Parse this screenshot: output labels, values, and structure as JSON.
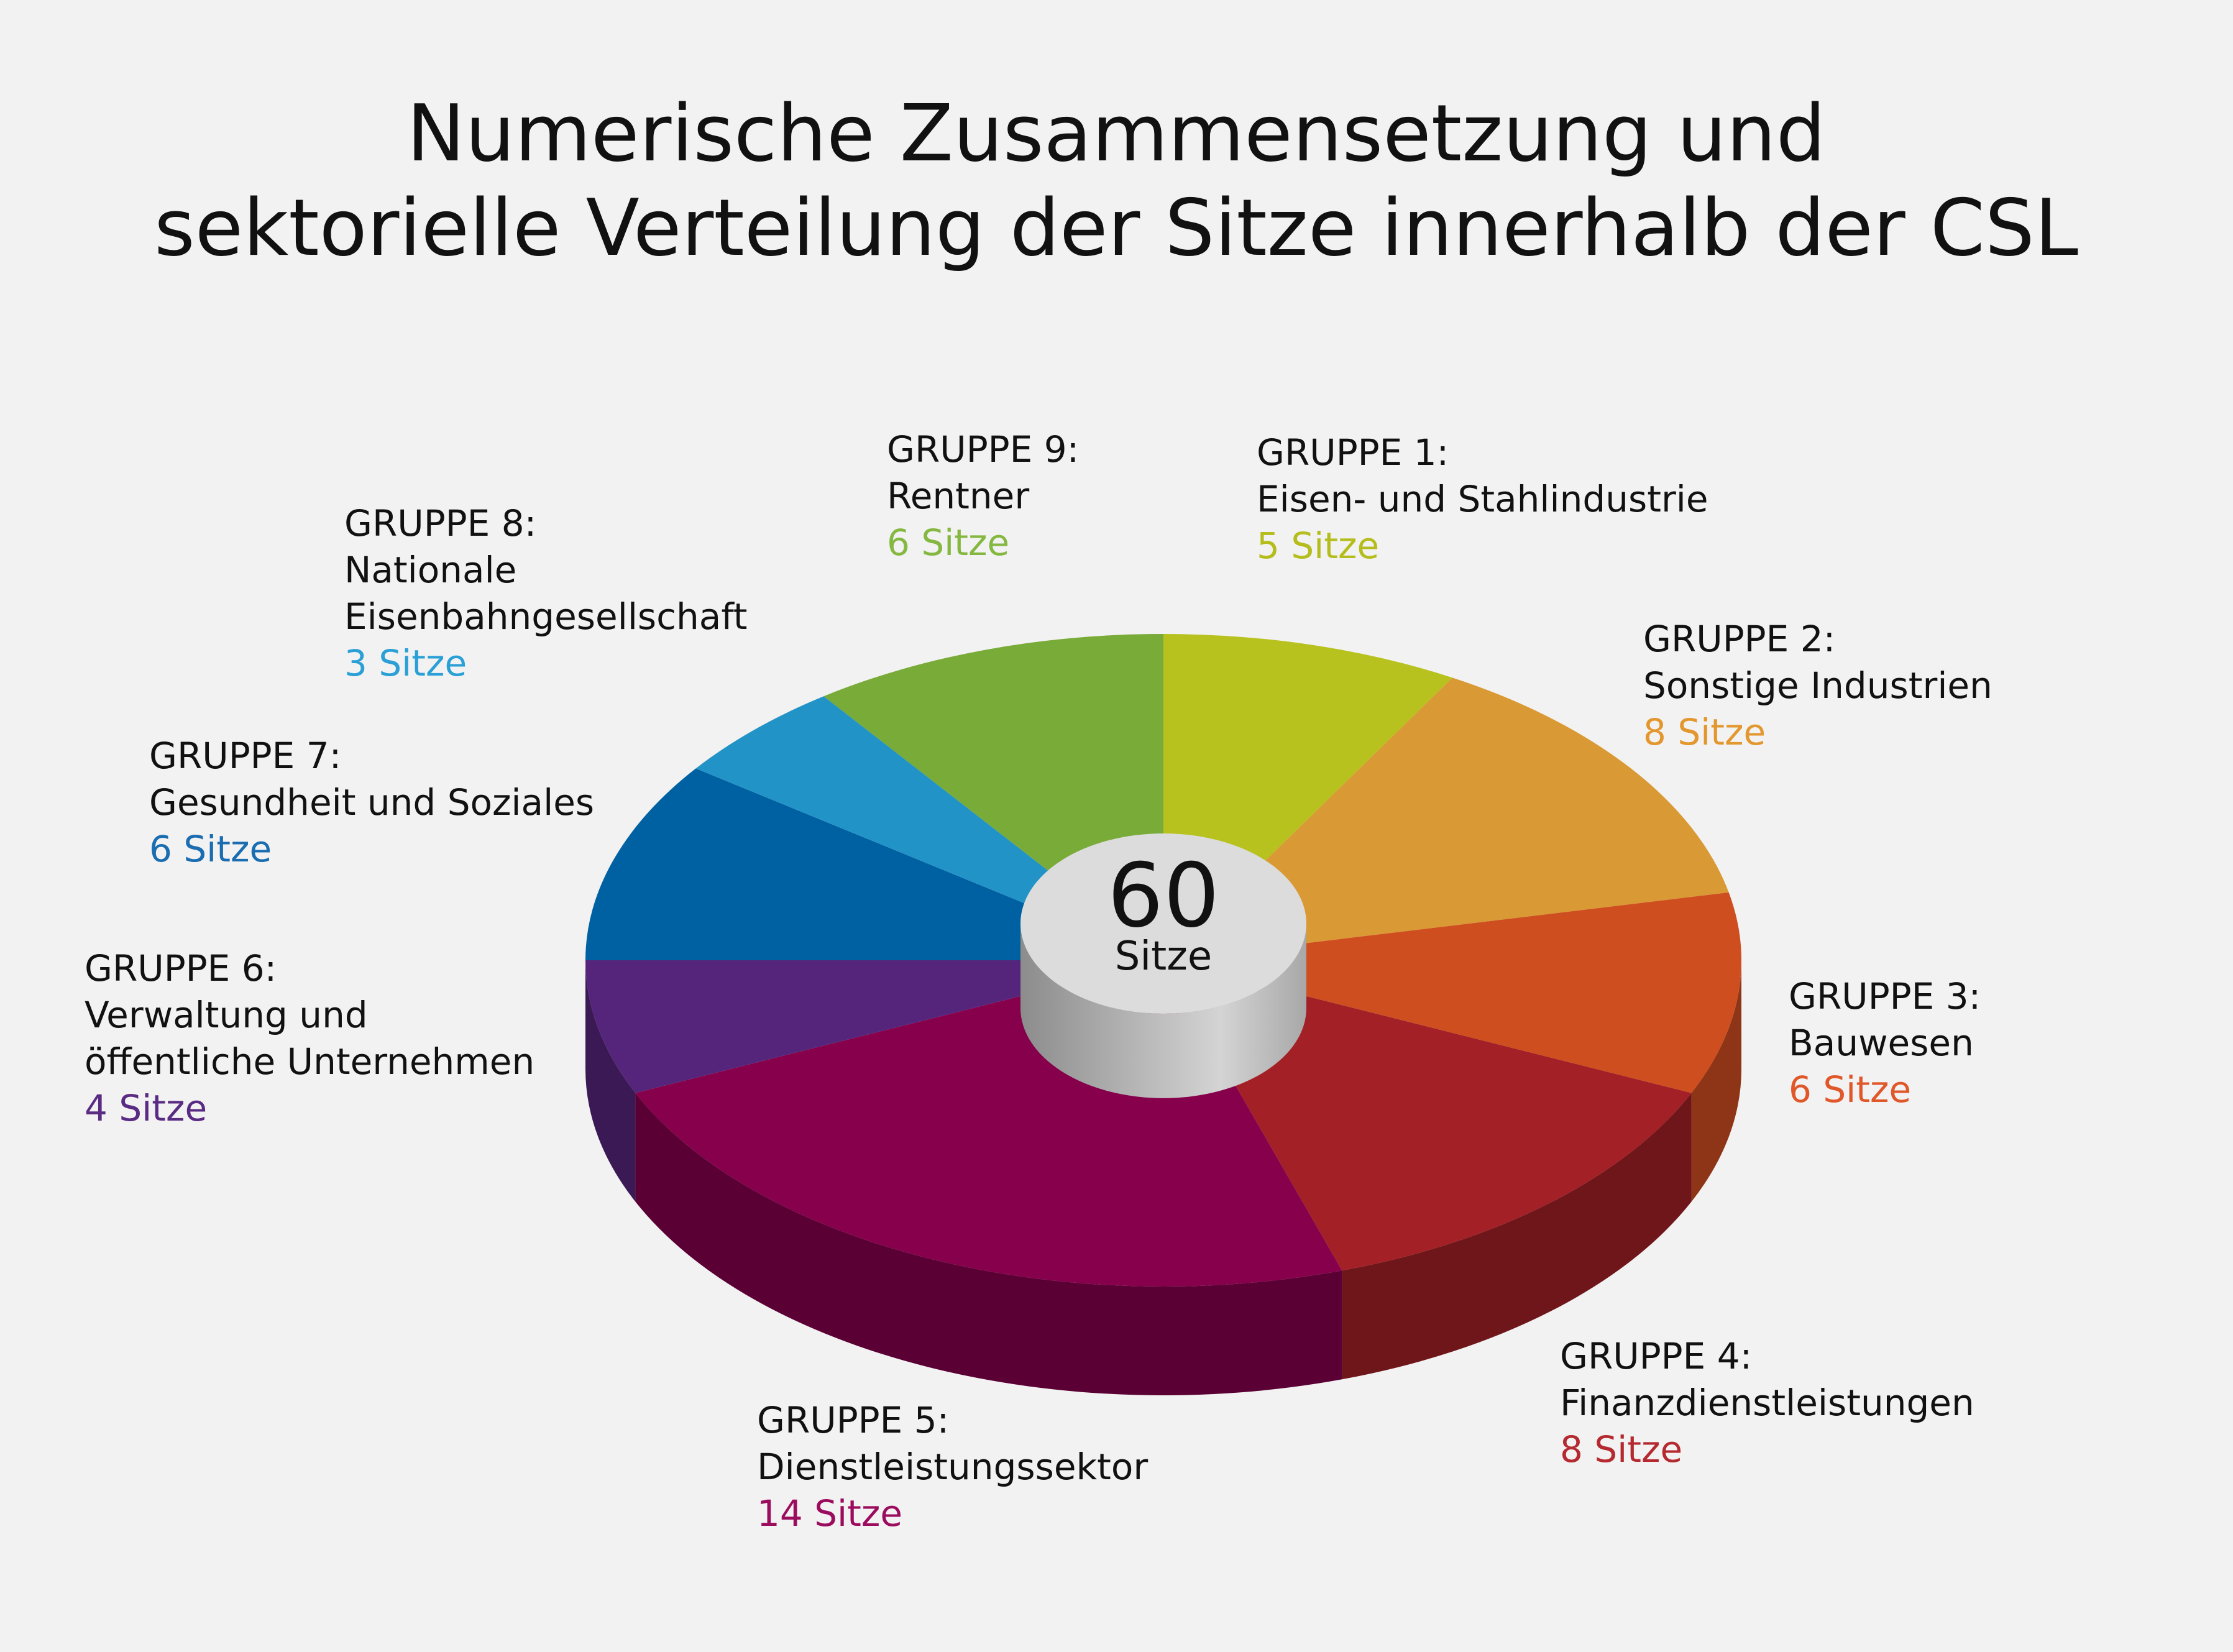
{
  "chart_data": {
    "type": "pie",
    "title_lines": [
      "Numerische Zusammensetzung und",
      "sektorielle Verteilung der Sitze innerhalb der CSL"
    ],
    "total": {
      "value": "60",
      "label": "Sitze"
    },
    "slices": [
      {
        "group": "GRUPPE 1:",
        "name_lines": [
          "Eisen- und Stahlindustrie"
        ],
        "seats": 5,
        "seats_label": "5 Sitze",
        "color": "#b8c21f",
        "label_color": "#b5bd1c"
      },
      {
        "group": "GRUPPE 2:",
        "name_lines": [
          "Sonstige Industrien"
        ],
        "seats": 8,
        "seats_label": "8 Sitze",
        "color": "#d99a35",
        "label_color": "#e3972f"
      },
      {
        "group": "GRUPPE 3:",
        "name_lines": [
          "Bauwesen"
        ],
        "seats": 6,
        "seats_label": "6 Sitze",
        "color": "#cf4e20",
        "label_color": "#e0572a"
      },
      {
        "group": "GRUPPE 4:",
        "name_lines": [
          "Finanzdienstleistungen"
        ],
        "seats": 8,
        "seats_label": "8 Sitze",
        "color": "#a32026",
        "label_color": "#b52a30"
      },
      {
        "group": "GRUPPE 5:",
        "name_lines": [
          "Dienstleistungssektor"
        ],
        "seats": 14,
        "seats_label": "14 Sitze",
        "color": "#86004c",
        "label_color": "#9c0c5e"
      },
      {
        "group": "GRUPPE 6:",
        "name_lines": [
          "Verwaltung und",
          "öffentliche Unternehmen"
        ],
        "seats": 4,
        "seats_label": "4 Sitze",
        "color": "#55257b",
        "label_color": "#5a2b83"
      },
      {
        "group": "GRUPPE 7:",
        "name_lines": [
          "Gesundheit und Soziales"
        ],
        "seats": 6,
        "seats_label": "6 Sitze",
        "color": "#0061a2",
        "label_color": "#1a6db0"
      },
      {
        "group": "GRUPPE 8:",
        "name_lines": [
          "Nationale",
          "Eisenbahngesellschaft"
        ],
        "seats": 3,
        "seats_label": "3 Sitze",
        "color": "#2293c7",
        "label_color": "#2aa0d6"
      },
      {
        "group": "GRUPPE 9:",
        "name_lines": [
          "Rentner"
        ],
        "seats": 6,
        "seats_label": "6 Sitze",
        "color": "#79ab39",
        "label_color": "#85b841"
      }
    ]
  }
}
